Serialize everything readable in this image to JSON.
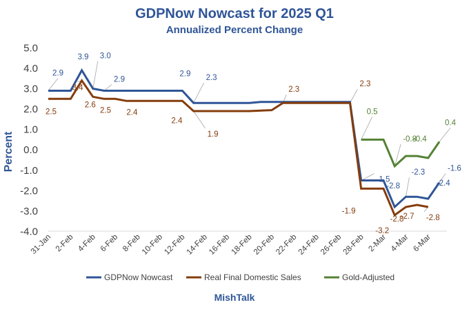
{
  "chart_data": {
    "type": "line",
    "title": "GDPNow Nowcast for 2025 Q1",
    "subtitle": "Annualized Percent Change",
    "ylabel": "Percent",
    "footer": "MishTalk",
    "ylim": [
      -4.0,
      5.0
    ],
    "yticks": [
      "5.0",
      "4.0",
      "3.0",
      "2.0",
      "1.0",
      "0.0",
      "-1.0",
      "-2.0",
      "-3.0",
      "-4.0"
    ],
    "x_tick_labels": [
      "31-Jan",
      "2-Feb",
      "4-Feb",
      "6-Feb",
      "8-Feb",
      "10-Feb",
      "12-Feb",
      "14-Feb",
      "16-Feb",
      "18-Feb",
      "20-Feb",
      "22-Feb",
      "24-Feb",
      "26-Feb",
      "28-Feb",
      "2-Mar",
      "4-Mar",
      "6-Mar"
    ],
    "legend_position": "bottom",
    "grid": false,
    "series": [
      {
        "name": "GDPNow Nowcast",
        "color": "#2f5597",
        "points": [
          [
            "31-Jan",
            2.9
          ],
          [
            "2-Feb",
            2.9
          ],
          [
            "3-Feb",
            3.9
          ],
          [
            "4-Feb",
            3.0
          ],
          [
            "5-Feb",
            2.9
          ],
          [
            "12-Feb",
            2.9
          ],
          [
            "13-Feb",
            2.3
          ],
          [
            "18-Feb",
            2.3
          ],
          [
            "19-Feb",
            2.35
          ],
          [
            "20-Feb",
            2.35
          ],
          [
            "21-Feb",
            2.35
          ],
          [
            "27-Feb",
            2.35
          ],
          [
            "28-Feb",
            -1.5
          ],
          [
            "1-Mar",
            -1.5
          ],
          [
            "2-Mar",
            -1.5
          ],
          [
            "3-Mar",
            -2.8
          ],
          [
            "4-Mar",
            -2.3
          ],
          [
            "5-Mar",
            -2.3
          ],
          [
            "6-Mar",
            -2.4
          ],
          [
            "7-Mar",
            -1.6
          ]
        ],
        "labels": [
          {
            "x": "31-Jan",
            "text": "2.9"
          },
          {
            "x": "3-Feb",
            "text": "3.9"
          },
          {
            "x": "4-Feb",
            "text": "3.0"
          },
          {
            "x": "5-Feb",
            "text": "2.9"
          },
          {
            "x": "12-Feb",
            "text": "2.9"
          },
          {
            "x": "13-Feb",
            "text": "2.3"
          },
          {
            "x": "28-Feb",
            "text": "-1.5"
          },
          {
            "x": "3-Mar",
            "text": "-2.8"
          },
          {
            "x": "4-Mar",
            "text": "-2.3"
          },
          {
            "x": "6-Mar",
            "text": "-2.4"
          },
          {
            "x": "7-Mar",
            "text": "-1.6"
          }
        ]
      },
      {
        "name": "Real Final Domestic Sales",
        "color": "#843c0c",
        "points": [
          [
            "31-Jan",
            2.5
          ],
          [
            "2-Feb",
            2.5
          ],
          [
            "3-Feb",
            3.4
          ],
          [
            "4-Feb",
            2.6
          ],
          [
            "5-Feb",
            2.5
          ],
          [
            "6-Feb",
            2.5
          ],
          [
            "7-Feb",
            2.4
          ],
          [
            "12-Feb",
            2.4
          ],
          [
            "13-Feb",
            1.9
          ],
          [
            "18-Feb",
            1.9
          ],
          [
            "20-Feb",
            1.95
          ],
          [
            "21-Feb",
            2.3
          ],
          [
            "27-Feb",
            2.3
          ],
          [
            "28-Feb",
            -1.9
          ],
          [
            "2-Mar",
            -1.9
          ],
          [
            "3-Mar",
            -3.2
          ],
          [
            "4-Mar",
            -2.8
          ],
          [
            "5-Mar",
            -2.7
          ],
          [
            "6-Mar",
            -2.8
          ]
        ],
        "labels": [
          {
            "x": "31-Jan",
            "text": "2.5"
          },
          {
            "x": "3-Feb",
            "text": "3.4"
          },
          {
            "x": "4-Feb",
            "text": "2.6"
          },
          {
            "x": "5-Feb",
            "text": "2.5"
          },
          {
            "x": "7-Feb",
            "text": "2.4"
          },
          {
            "x": "12-Feb",
            "text": "2.4"
          },
          {
            "x": "13-Feb",
            "text": "1.9"
          },
          {
            "x": "21-Feb",
            "text": "2.3"
          },
          {
            "x": "27-Feb",
            "text": "2.3"
          },
          {
            "x": "28-Feb",
            "text": "-1.9"
          },
          {
            "x": "3-Mar",
            "text": "-3.2"
          },
          {
            "x": "4-Mar",
            "text": "-2.8"
          },
          {
            "x": "5-Mar",
            "text": "-2.7"
          },
          {
            "x": "6-Mar",
            "text": "-2.8"
          }
        ]
      },
      {
        "name": "Gold-Adjusted",
        "color": "#548235",
        "points": [
          [
            "28-Feb",
            0.5
          ],
          [
            "2-Mar",
            0.5
          ],
          [
            "3-Mar",
            -0.8
          ],
          [
            "4-Mar",
            -0.3
          ],
          [
            "5-Mar",
            -0.3
          ],
          [
            "6-Mar",
            -0.4
          ],
          [
            "7-Mar",
            0.4
          ]
        ],
        "labels": [
          {
            "x": "28-Feb",
            "text": "0.5"
          },
          {
            "x": "3-Mar",
            "text": "-0.8"
          },
          {
            "x": "6-Mar",
            "text": "-0.4"
          },
          {
            "x": "7-Mar",
            "text": "0.4"
          }
        ]
      }
    ]
  }
}
